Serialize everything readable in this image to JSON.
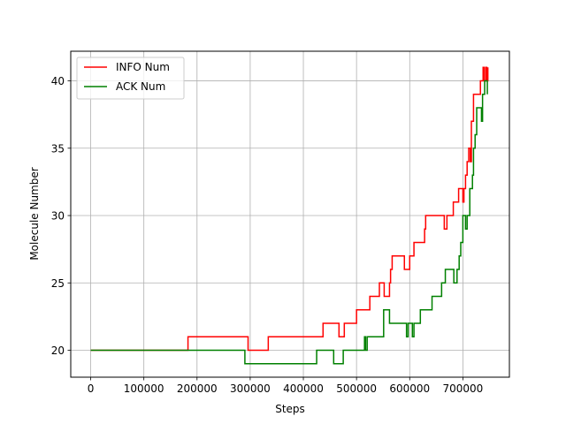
{
  "chart_data": {
    "type": "line",
    "title": "",
    "xlabel": "Steps",
    "ylabel": "Molecule Number",
    "xlim": [
      -37500,
      787500
    ],
    "ylim": [
      18,
      42.2
    ],
    "xticks": [
      0,
      100000,
      200000,
      300000,
      400000,
      500000,
      600000,
      700000
    ],
    "xtick_labels": [
      "0",
      "100000",
      "200000",
      "300000",
      "400000",
      "500000",
      "600000",
      "700000"
    ],
    "yticks": [
      20,
      25,
      30,
      35,
      40
    ],
    "ytick_labels": [
      "20",
      "25",
      "30",
      "35",
      "40"
    ],
    "grid": true,
    "legend_position": "upper-left",
    "step": true,
    "series": [
      {
        "name": "INFO Num",
        "color": "#ff0000",
        "points": [
          [
            0,
            20
          ],
          [
            183000,
            21
          ],
          [
            296000,
            20
          ],
          [
            334000,
            21
          ],
          [
            437000,
            22
          ],
          [
            467000,
            21
          ],
          [
            477000,
            22
          ],
          [
            500000,
            23
          ],
          [
            525000,
            24
          ],
          [
            543000,
            25
          ],
          [
            552000,
            24
          ],
          [
            562000,
            25
          ],
          [
            564000,
            26
          ],
          [
            567000,
            27
          ],
          [
            590000,
            26
          ],
          [
            600000,
            27
          ],
          [
            608000,
            28
          ],
          [
            628000,
            29
          ],
          [
            630000,
            30
          ],
          [
            665000,
            29
          ],
          [
            670000,
            30
          ],
          [
            682000,
            31
          ],
          [
            692000,
            32
          ],
          [
            700000,
            31
          ],
          [
            702000,
            32
          ],
          [
            705000,
            33
          ],
          [
            708000,
            34
          ],
          [
            711000,
            35
          ],
          [
            714000,
            34
          ],
          [
            716000,
            37
          ],
          [
            720000,
            39
          ],
          [
            733000,
            40
          ],
          [
            738000,
            41
          ],
          [
            740000,
            40
          ],
          [
            743000,
            41
          ],
          [
            745000,
            40
          ],
          [
            747000,
            41
          ]
        ]
      },
      {
        "name": "ACK Num",
        "color": "#008000",
        "points": [
          [
            0,
            20
          ],
          [
            290000,
            19
          ],
          [
            425000,
            20
          ],
          [
            457000,
            19
          ],
          [
            475000,
            20
          ],
          [
            515000,
            21
          ],
          [
            517000,
            20
          ],
          [
            520000,
            21
          ],
          [
            551000,
            23
          ],
          [
            562000,
            22
          ],
          [
            594000,
            21
          ],
          [
            597000,
            22
          ],
          [
            605000,
            21
          ],
          [
            608000,
            22
          ],
          [
            620000,
            23
          ],
          [
            633000,
            23
          ],
          [
            642000,
            24
          ],
          [
            660000,
            25
          ],
          [
            667000,
            26
          ],
          [
            683000,
            25
          ],
          [
            689000,
            26
          ],
          [
            693000,
            27
          ],
          [
            696000,
            28
          ],
          [
            700000,
            30
          ],
          [
            705000,
            29
          ],
          [
            708000,
            30
          ],
          [
            713000,
            32
          ],
          [
            718000,
            33
          ],
          [
            720000,
            35
          ],
          [
            723000,
            36
          ],
          [
            726000,
            38
          ],
          [
            735000,
            37
          ],
          [
            737000,
            39
          ],
          [
            741000,
            40
          ],
          [
            746000,
            39
          ]
        ]
      }
    ]
  }
}
